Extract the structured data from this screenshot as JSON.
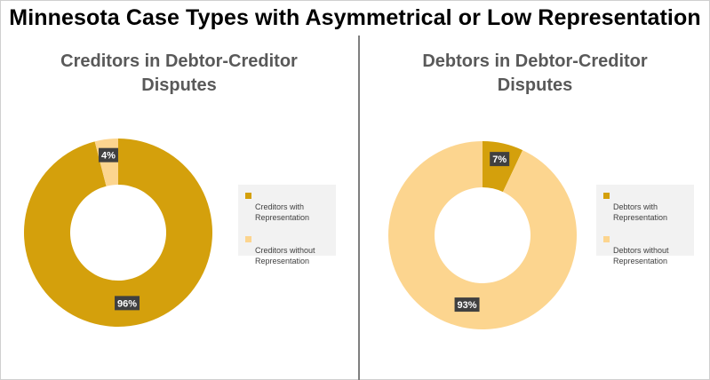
{
  "title": "Minnesota Case Types with Asymmetrical or Low Representation",
  "colors": {
    "represented": "#D4A00C",
    "unrepresented": "#FCD58F",
    "label_box": "#404040"
  },
  "chart_data": [
    {
      "type": "pie",
      "title_lines": [
        "Creditors in Debtor-Creditor",
        "Disputes"
      ],
      "slices": [
        {
          "label": "Creditors with Representation",
          "legend_lines": [
            "Creditors with",
            "Representation"
          ],
          "value": 96,
          "display": "96%",
          "color": "#D4A00C"
        },
        {
          "label": "Creditors without Representation",
          "legend_lines": [
            "Creditors without",
            "Representation"
          ],
          "value": 4,
          "display": "4%",
          "color": "#FCD58F"
        }
      ],
      "legend": "right"
    },
    {
      "type": "pie",
      "title_lines": [
        "Debtors in Debtor-Creditor",
        "Disputes"
      ],
      "slices": [
        {
          "label": "Debtors with Representation",
          "legend_lines": [
            "Debtors with",
            "Representation"
          ],
          "value": 7,
          "display": "7%",
          "color": "#D4A00C"
        },
        {
          "label": "Debtors without Representation",
          "legend_lines": [
            "Debtors without",
            "Representation"
          ],
          "value": 93,
          "display": "93%",
          "color": "#FCD58F"
        }
      ],
      "legend": "right"
    }
  ]
}
